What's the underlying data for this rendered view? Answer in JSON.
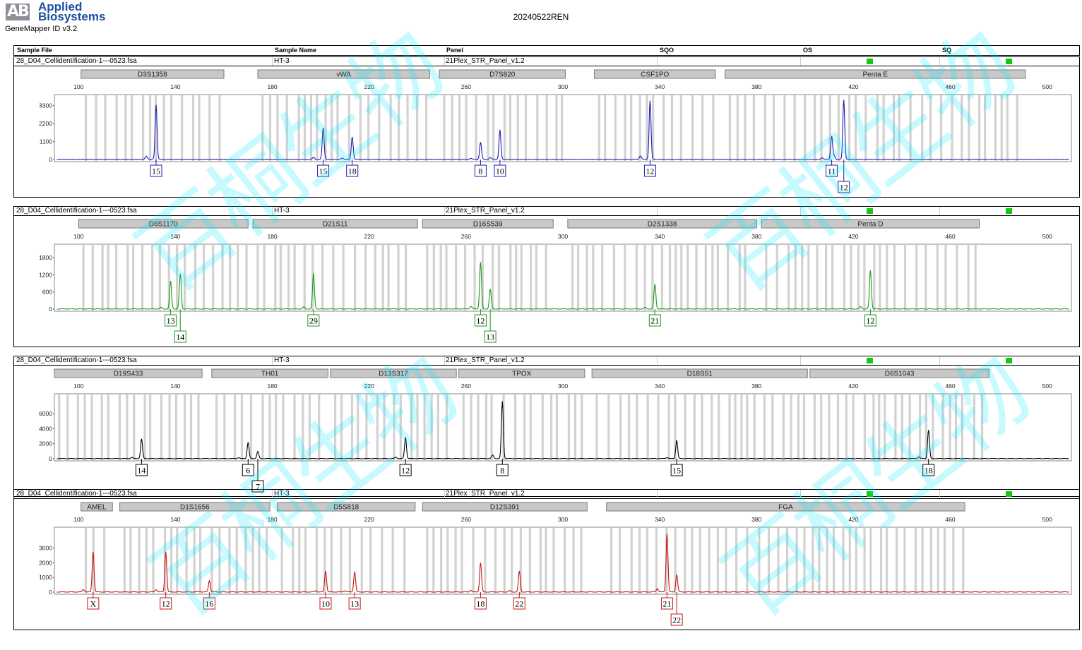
{
  "header": {
    "logo_mark": "AB",
    "brand_line1": "Applied",
    "brand_line2": "Biosystems",
    "software": "GeneMapper ID v3.2",
    "run_name": "20240522REN"
  },
  "columns": {
    "sample_file": "Sample File",
    "sample_name": "Sample Name",
    "panel": "Panel",
    "sqo": "SQO",
    "os": "OS",
    "sq": "SQ"
  },
  "axis_ticks": [
    "100",
    "140",
    "180",
    "220",
    "260",
    "300",
    "340",
    "380",
    "420",
    "460",
    "500"
  ],
  "status_color": "#14c814",
  "watermark_text": "百桐生物",
  "chart_data": [
    {
      "type": "line",
      "sample_file": "28_D04_Cellidentification-1---0523.fsa",
      "sample_name": "HT-3",
      "panel": "21Plex_STR_Panel_v1.2",
      "color": "#1a1ab4",
      "yticks": [
        "3300",
        "2200",
        "1100",
        "0"
      ],
      "ylim": [
        0,
        3500
      ],
      "x_range": [
        90,
        510
      ],
      "markers": [
        {
          "name": "D3S1358",
          "start": 101,
          "end": 160
        },
        {
          "name": "vWA",
          "start": 174,
          "end": 245
        },
        {
          "name": "D7S820",
          "start": 249,
          "end": 301
        },
        {
          "name": "CSF1PO",
          "start": 313,
          "end": 363
        },
        {
          "name": "Penta E",
          "start": 367,
          "end": 491
        }
      ],
      "peaks": [
        {
          "x": 132,
          "y": 3350,
          "label": "15"
        },
        {
          "x": 201,
          "y": 1920,
          "label": "15"
        },
        {
          "x": 213,
          "y": 1380,
          "label": "18"
        },
        {
          "x": 266,
          "y": 1050,
          "label": "8"
        },
        {
          "x": 274,
          "y": 1800,
          "label": "10"
        },
        {
          "x": 336,
          "y": 3600,
          "label": "12"
        },
        {
          "x": 411,
          "y": 1400,
          "label": "11"
        },
        {
          "x": 416,
          "y": 3650,
          "label": "12"
        }
      ]
    },
    {
      "type": "line",
      "sample_file": "28_D04_Cellidentification-1---0523.fsa",
      "sample_name": "HT-3",
      "panel": "21Plex_STR_Panel_v1.2",
      "color": "#1a9a1a",
      "yticks": [
        "1800",
        "1200",
        "600",
        "0"
      ],
      "ylim": [
        0,
        2000
      ],
      "x_range": [
        90,
        510
      ],
      "markers": [
        {
          "name": "D8S1170",
          "start": 100,
          "end": 170
        },
        {
          "name": "D21S11",
          "start": 172,
          "end": 240
        },
        {
          "name": "D16S539",
          "start": 242,
          "end": 296
        },
        {
          "name": "D2S1338",
          "start": 302,
          "end": 380
        },
        {
          "name": "Penta D",
          "start": 382,
          "end": 472
        }
      ],
      "peaks": [
        {
          "x": 138,
          "y": 900,
          "label": "13"
        },
        {
          "x": 142,
          "y": 1230,
          "label": "14"
        },
        {
          "x": 197,
          "y": 1250,
          "label": "29"
        },
        {
          "x": 266,
          "y": 1600,
          "label": "12"
        },
        {
          "x": 270,
          "y": 700,
          "label": "13"
        },
        {
          "x": 338,
          "y": 870,
          "label": "21"
        },
        {
          "x": 427,
          "y": 1350,
          "label": "12"
        }
      ]
    },
    {
      "type": "line",
      "sample_file": "28_D04_Cellidentification-1---0523.fsa",
      "sample_name": "HT-3",
      "panel": "21Plex_STR_Panel_v1.2",
      "color": "#000000",
      "yticks": [
        "6000",
        "4000",
        "2000",
        "0"
      ],
      "ylim": [
        0,
        7600
      ],
      "x_range": [
        90,
        510
      ],
      "markers": [
        {
          "name": "D19S433",
          "start": 90,
          "end": 151
        },
        {
          "name": "TH01",
          "start": 155,
          "end": 203
        },
        {
          "name": "D13S317",
          "start": 204,
          "end": 256
        },
        {
          "name": "TPOX",
          "start": 257,
          "end": 309
        },
        {
          "name": "D18S51",
          "start": 312,
          "end": 401
        },
        {
          "name": "D6S1043",
          "start": 402,
          "end": 476
        }
      ],
      "peaks": [
        {
          "x": 126,
          "y": 2600,
          "label": "14"
        },
        {
          "x": 170,
          "y": 2100,
          "label": "6"
        },
        {
          "x": 174,
          "y": 950,
          "label": "7"
        },
        {
          "x": 235,
          "y": 2850,
          "label": "12"
        },
        {
          "x": 275,
          "y": 7600,
          "label": "8"
        },
        {
          "x": 347,
          "y": 2450,
          "label": "15"
        },
        {
          "x": 451,
          "y": 3800,
          "label": "18"
        }
      ]
    },
    {
      "type": "line",
      "sample_file": "28_D04_Cellidentification-1---0523.fsa",
      "sample_name": "HT-3",
      "panel": "21Plex_STR_Panel_v1.2",
      "color": "#c81414",
      "yticks": [
        "3000",
        "2000",
        "1000",
        "0"
      ],
      "ylim": [
        0,
        3900
      ],
      "x_range": [
        90,
        510
      ],
      "markers": [
        {
          "name": "AMEL",
          "start": 101,
          "end": 114
        },
        {
          "name": "D1S1656",
          "start": 117,
          "end": 179
        },
        {
          "name": "D5S818",
          "start": 182,
          "end": 239
        },
        {
          "name": "D12S391",
          "start": 242,
          "end": 310
        },
        {
          "name": "FGA",
          "start": 318,
          "end": 466
        }
      ],
      "peaks": [
        {
          "x": 106,
          "y": 2750,
          "label": "X"
        },
        {
          "x": 136,
          "y": 2750,
          "label": "12"
        },
        {
          "x": 154,
          "y": 780,
          "label": "16"
        },
        {
          "x": 202,
          "y": 1450,
          "label": "10"
        },
        {
          "x": 214,
          "y": 1400,
          "label": "13"
        },
        {
          "x": 266,
          "y": 2000,
          "label": "18"
        },
        {
          "x": 282,
          "y": 1420,
          "label": "22"
        },
        {
          "x": 343,
          "y": 3900,
          "label": "21"
        },
        {
          "x": 347,
          "y": 1200,
          "label": "22"
        }
      ]
    }
  ]
}
